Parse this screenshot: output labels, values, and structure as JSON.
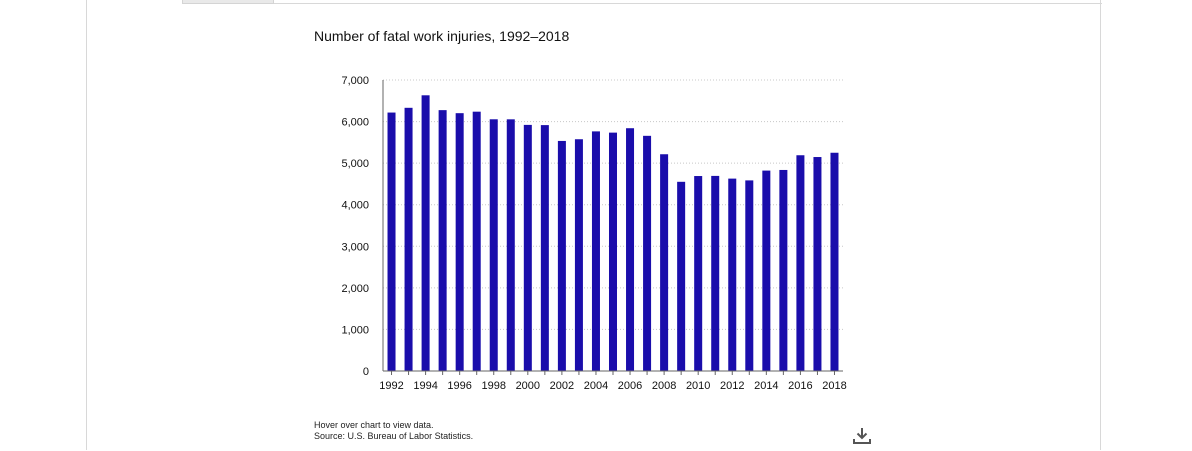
{
  "chart_data": {
    "type": "bar",
    "title": "Number of fatal work injuries, 1992–2018",
    "xlabel": "",
    "ylabel": "",
    "ylim": [
      0,
      7000
    ],
    "yticks": [
      0,
      1000,
      2000,
      3000,
      4000,
      5000,
      6000,
      7000
    ],
    "ytick_labels": [
      "0",
      "1,000",
      "2,000",
      "3,000",
      "4,000",
      "5,000",
      "6,000",
      "7,000"
    ],
    "grid": true,
    "categories": [
      "1992",
      "1993",
      "1994",
      "1995",
      "1996",
      "1997",
      "1998",
      "1999",
      "2000",
      "2001",
      "2002",
      "2003",
      "2004",
      "2005",
      "2006",
      "2007",
      "2008",
      "2009",
      "2010",
      "2011",
      "2012",
      "2013",
      "2014",
      "2015",
      "2016",
      "2017",
      "2018"
    ],
    "xtick_labels": [
      "1992",
      "",
      "1994",
      "",
      "1996",
      "",
      "1998",
      "",
      "2000",
      "",
      "2002",
      "",
      "2004",
      "",
      "2006",
      "",
      "2008",
      "",
      "2010",
      "",
      "2012",
      "",
      "2014",
      "",
      "2016",
      "",
      "2018"
    ],
    "values": [
      6217,
      6331,
      6632,
      6275,
      6202,
      6238,
      6055,
      6054,
      5920,
      5915,
      5534,
      5575,
      5764,
      5734,
      5840,
      5657,
      5214,
      4551,
      4690,
      4693,
      4628,
      4585,
      4821,
      4836,
      5190,
      5147,
      5250
    ],
    "bar_color": "#1a0dab"
  },
  "footnotes": {
    "hover": "Hover over chart to view data.",
    "source": "Source: U.S. Bureau of Labor Statistics."
  },
  "download": {
    "icon": "download-icon"
  }
}
